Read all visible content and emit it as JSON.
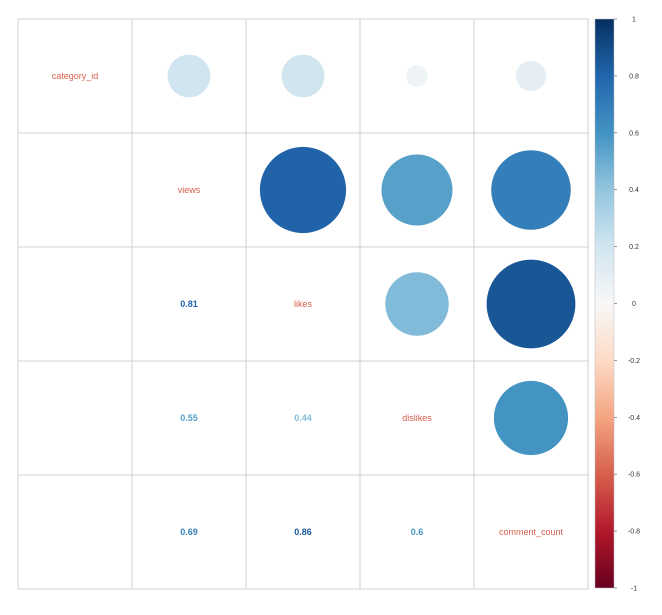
{
  "chart_data": {
    "type": "heatmap",
    "variables": [
      "category_id",
      "views",
      "likes",
      "dislikes",
      "comment_count"
    ],
    "matrix": [
      [
        1.0,
        0.2,
        0.2,
        0.05,
        0.1
      ],
      [
        0.2,
        1.0,
        0.81,
        0.55,
        0.69
      ],
      [
        0.2,
        0.81,
        1.0,
        0.44,
        0.86
      ],
      [
        0.05,
        0.55,
        0.44,
        1.0,
        0.6
      ],
      [
        0.1,
        0.69,
        0.86,
        0.6,
        1.0
      ]
    ],
    "lower_text": [
      [
        "",
        "",
        "",
        "",
        ""
      ],
      [
        "",
        "",
        "",
        "",
        ""
      ],
      [
        "",
        "0.81",
        "",
        "",
        ""
      ],
      [
        "",
        "0.55",
        "0.44",
        "",
        ""
      ],
      [
        "",
        "0.69",
        "0.86",
        "0.6",
        ""
      ]
    ],
    "upper_method": "circle",
    "lower_method": "number",
    "colorbar": {
      "range": [
        -1,
        1
      ],
      "ticks": [
        "1",
        "0.8",
        "0.6",
        "0.4",
        "0.2",
        "0",
        "-0.2",
        "-0.4",
        "-0.6",
        "-0.8",
        "-1"
      ],
      "colors": [
        "#67001f",
        "#b2182b",
        "#d6604d",
        "#f4a582",
        "#fddbc7",
        "#f7f7f7",
        "#d1e5f0",
        "#92c5de",
        "#4393c3",
        "#2166ac",
        "#053061"
      ]
    },
    "grid": true,
    "diagonal_label_color": "#d6604d"
  }
}
